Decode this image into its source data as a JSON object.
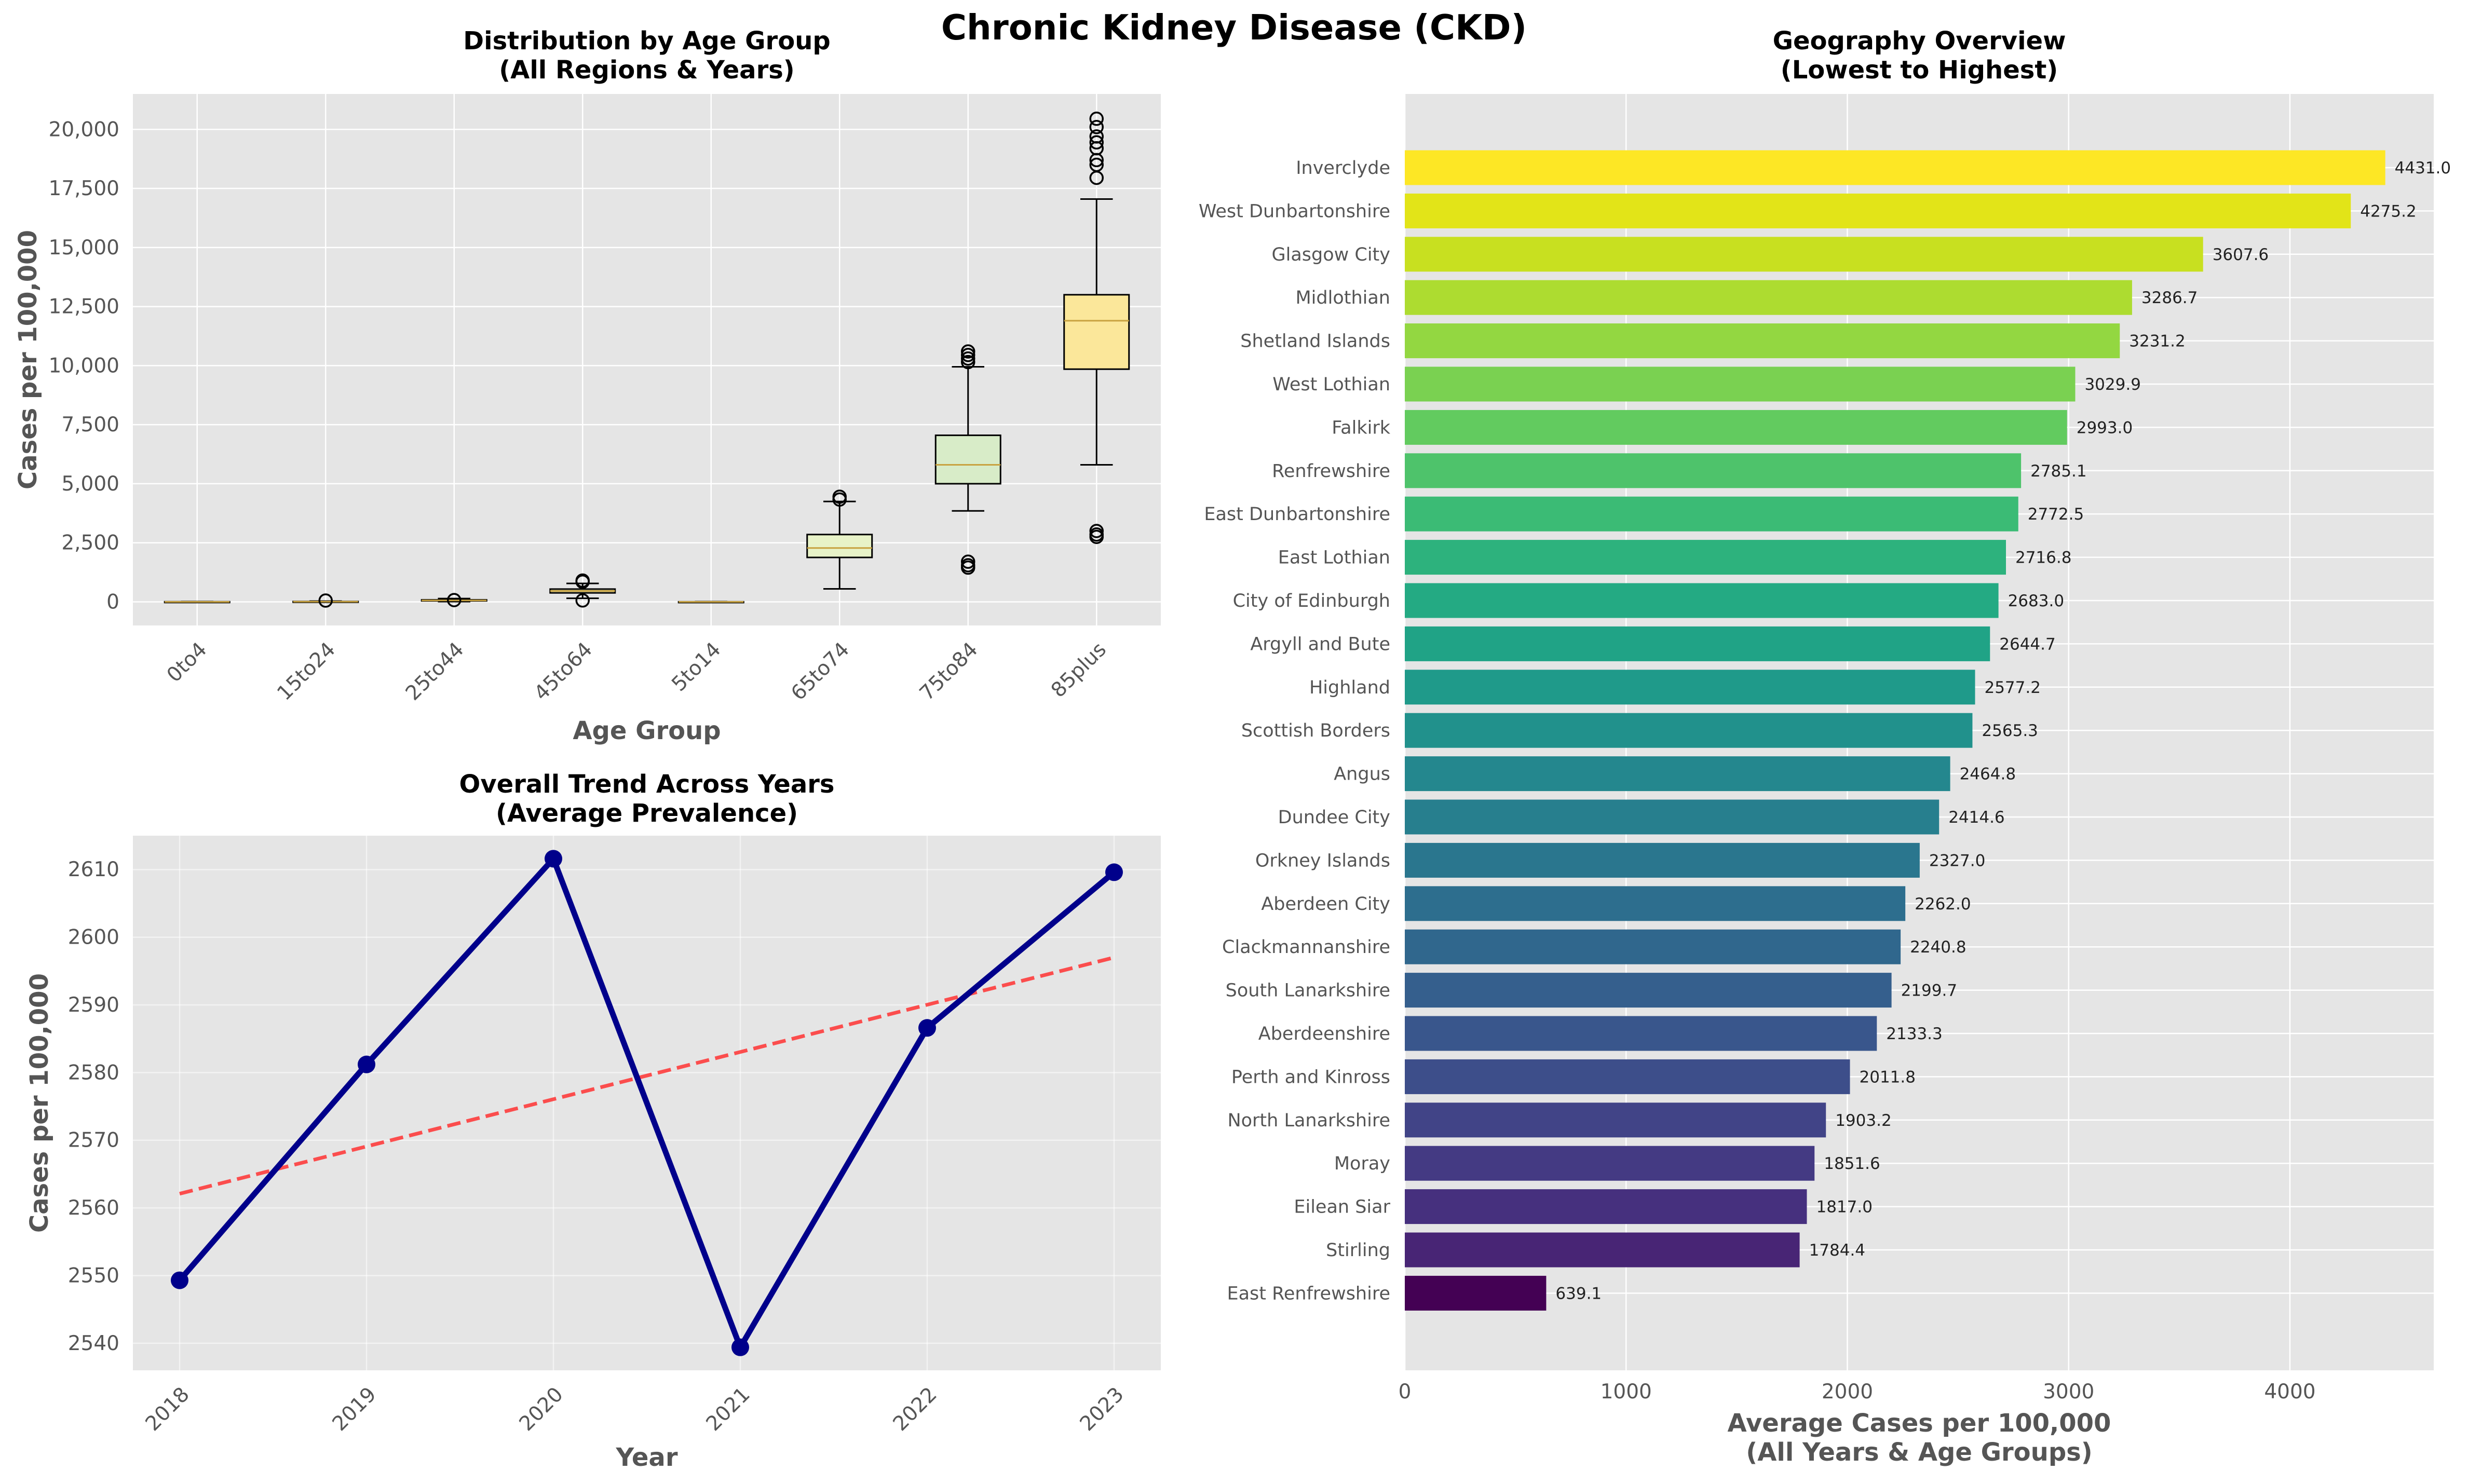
{
  "figure": {
    "suptitle": "Chronic Kidney Disease (CKD)"
  },
  "chart_data": [
    {
      "type": "box",
      "title": "Distribution by Age Group\n(All Regions & Years)",
      "xlabel": "Age Group",
      "ylabel": "Cases per 100,000",
      "categories": [
        "0to4",
        "15to24",
        "25to44",
        "45to64",
        "5to14",
        "65to74",
        "75to84",
        "85plus"
      ],
      "yticks": [
        0,
        2500,
        5000,
        7500,
        10000,
        12500,
        15000,
        17500,
        20000
      ],
      "ylim": [
        -1000,
        21500
      ],
      "grid": true,
      "boxes": [
        {
          "category": "0to4",
          "whislo": 0,
          "q1": 0,
          "median": 0,
          "q3": 5,
          "whishi": 10,
          "fliers": [],
          "color": "#ffffcc"
        },
        {
          "category": "15to24",
          "whislo": 0,
          "q1": 3,
          "median": 8,
          "q3": 15,
          "whishi": 30,
          "fliers": [
            55
          ],
          "color": "#ffffcc"
        },
        {
          "category": "25to44",
          "whislo": 10,
          "q1": 40,
          "median": 60,
          "q3": 85,
          "whishi": 140,
          "fliers": [
            75
          ],
          "color": "#ffffcc"
        },
        {
          "category": "45to64",
          "whislo": 150,
          "q1": 380,
          "median": 460,
          "q3": 540,
          "whishi": 780,
          "fliers": [
            60,
            850,
            900
          ],
          "color": "#ffffcc"
        },
        {
          "category": "5to14",
          "whislo": 0,
          "q1": 0,
          "median": 0,
          "q3": 3,
          "whishi": 8,
          "fliers": [],
          "color": "#ffffcc"
        },
        {
          "category": "65to74",
          "whislo": 550,
          "q1": 1880,
          "median": 2280,
          "q3": 2850,
          "whishi": 4250,
          "fliers": [
            4330,
            4450
          ],
          "color": "#e8f3c8"
        },
        {
          "category": "75to84",
          "whislo": 3850,
          "q1": 5000,
          "median": 5800,
          "q3": 7050,
          "whishi": 9950,
          "fliers": [
            1450,
            1550,
            1700,
            10150,
            10300,
            10450,
            10600
          ],
          "color": "#d8ecc8"
        },
        {
          "category": "85plus",
          "whislo": 5800,
          "q1": 9850,
          "median": 11900,
          "q3": 13000,
          "whishi": 17050,
          "fliers": [
            2750,
            2850,
            3000,
            17950,
            18500,
            18700,
            19200,
            19450,
            19700,
            20100,
            20450
          ],
          "color": "#fbe79a"
        }
      ]
    },
    {
      "type": "line",
      "title": "Overall Trend Across Years\n(Average Prevalence)",
      "xlabel": "Year",
      "ylabel": "Cases per 100,000",
      "x": [
        2018,
        2019,
        2020,
        2021,
        2022,
        2023
      ],
      "series": [
        {
          "values": [
            2549.3,
            2581.2,
            2611.6,
            2539.4,
            2586.6,
            2609.6
          ],
          "color": "#00008b",
          "style": "solid",
          "marker": "circle"
        }
      ],
      "trend": {
        "from": 2562.1,
        "to": 2597.0,
        "color": "#ff3333",
        "style": "dashed"
      },
      "yticks": [
        2540,
        2550,
        2560,
        2570,
        2580,
        2590,
        2600,
        2610
      ],
      "ylim": [
        2536,
        2615
      ],
      "xlim": [
        2017.75,
        2023.25
      ],
      "grid": true
    },
    {
      "type": "bar",
      "orientation": "horizontal",
      "title": "Geography Overview\n(Lowest to Highest)",
      "xlabel": "Average Cases per 100,000\n(All Years & Age Groups)",
      "xticks": [
        0,
        1000,
        2000,
        3000,
        4000
      ],
      "xlim": [
        0,
        4650
      ],
      "grid": true,
      "colormap": "viridis",
      "categories": [
        "Inverclyde",
        "West Dunbartonshire",
        "Glasgow City",
        "Midlothian",
        "Shetland Islands",
        "West Lothian",
        "Falkirk",
        "Renfrewshire",
        "East Dunbartonshire",
        "East Lothian",
        "City of Edinburgh",
        "Argyll and Bute",
        "Highland",
        "Scottish Borders",
        "Angus",
        "Dundee City",
        "Orkney Islands",
        "Aberdeen City",
        "Clackmannanshire",
        "South Lanarkshire",
        "Aberdeenshire",
        "Perth and Kinross",
        "North Lanarkshire",
        "Moray",
        "Eilean Siar",
        "Stirling",
        "East Renfrewshire"
      ],
      "values": [
        4431.0,
        4275.2,
        3607.6,
        3286.7,
        3231.2,
        3029.9,
        2993.0,
        2785.1,
        2772.5,
        2716.8,
        2683.0,
        2644.7,
        2577.2,
        2565.3,
        2464.8,
        2414.6,
        2327.0,
        2262.0,
        2240.8,
        2199.7,
        2133.3,
        2011.8,
        1903.2,
        1851.6,
        1817.0,
        1784.4,
        639.1
      ],
      "value_labels": [
        "4431.0",
        "4275.2",
        "3607.6",
        "3286.7",
        "3231.2",
        "3029.9",
        "2993.0",
        "2785.1",
        "2772.5",
        "2716.8",
        "2683.0",
        "2644.7",
        "2577.2",
        "2565.3",
        "2464.8",
        "2414.6",
        "2327.0",
        "2262.0",
        "2240.8",
        "2199.7",
        "2133.3",
        "2011.8",
        "1903.2",
        "1851.6",
        "1817.0",
        "1784.4",
        "639.1"
      ],
      "colors": [
        "#fde725",
        "#e2e418",
        "#c8e020",
        "#addc30",
        "#93d741",
        "#7ad151",
        "#62cb5f",
        "#4ec36b",
        "#3bbb75",
        "#2db27d",
        "#24aa83",
        "#20a386",
        "#1f9a8a",
        "#21918c",
        "#24878e",
        "#277f8e",
        "#2a768e",
        "#2d6e8e",
        "#30678d",
        "#355f8d",
        "#39568c",
        "#3d4e8a",
        "#414487",
        "#443a83",
        "#46307e",
        "#482575",
        "#440154"
      ]
    }
  ]
}
